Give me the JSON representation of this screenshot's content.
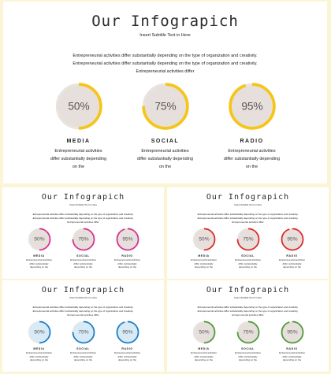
{
  "slides": [
    {
      "title": "Our Infograpich",
      "subtitle": "Insert Subtitle Text in Here",
      "description": "Entrepreneurial activities differ substantially depending on the type of organization and creativity. Entrepreneurial activities differ substantially depending on the type of organization and creativity. Entrepreneurial activities differ",
      "accent": "#f5c518",
      "items": [
        {
          "label": "MEDIA",
          "value": "50%",
          "fraction": 0.5,
          "desc": "Entrepreneurial activities differ substantially depending on the"
        },
        {
          "label": "SOCIAL",
          "value": "75%",
          "fraction": 0.75,
          "desc": "Entrepreneurial activities differ substantially depending on the"
        },
        {
          "label": "RADIO",
          "value": "95%",
          "fraction": 0.95,
          "desc": "Entrepreneurial activities differ substantially depending on the"
        }
      ]
    },
    {
      "title": "Our Infograpich",
      "subtitle": "Insert Subtitle Text in Here",
      "description": "Entrepreneurial activities differ substantially depending on the type of organization and creativity. Entrepreneurial activities differ substantially depending on the type of organization and creativity. Entrepreneurial activities differ",
      "accent": "#d6338f",
      "items": [
        {
          "label": "MEDIA",
          "value": "50%",
          "fraction": 0.5,
          "desc": "Entrepreneurial activities differ substantially depending on the"
        },
        {
          "label": "SOCIAL",
          "value": "75%",
          "fraction": 0.75,
          "desc": "Entrepreneurial activities differ substantially depending on the"
        },
        {
          "label": "RADIO",
          "value": "95%",
          "fraction": 0.95,
          "desc": "Entrepreneurial activities differ substantially depending on the"
        }
      ]
    },
    {
      "title": "Our Infograpich",
      "subtitle": "Insert Subtitle Text in Here",
      "description": "Entrepreneurial activities differ substantially depending on the type of organization and creativity. Entrepreneurial activities differ substantially depending on the type of organization and creativity. Entrepreneurial activities differ",
      "accent": "#dd2b2b",
      "items": [
        {
          "label": "MEDIA",
          "value": "50%",
          "fraction": 0.5,
          "desc": "Entrepreneurial activities differ substantially depending on the"
        },
        {
          "label": "SOCIAL",
          "value": "75%",
          "fraction": 0.75,
          "desc": "Entrepreneurial activities differ substantially depending on the"
        },
        {
          "label": "RADIO",
          "value": "95%",
          "fraction": 0.95,
          "desc": "Entrepreneurial activities differ substantially depending on the"
        }
      ]
    },
    {
      "title": "Our Infograpich",
      "subtitle": "Insert Subtitle Text in Here",
      "description": "Entrepreneurial activities differ substantially depending on the type of organization and creativity. Entrepreneurial activities differ substantially depending on the type of organization and creativity. Entrepreneurial activities differ",
      "accent": "#1f7fc4",
      "ring_fill": "#d8eaf6",
      "items": [
        {
          "label": "MEDIA",
          "value": "50%",
          "fraction": 0.5,
          "desc": "Entrepreneurial activities differ substantially depending on the"
        },
        {
          "label": "SOCIAL",
          "value": "75%",
          "fraction": 0.75,
          "desc": "Entrepreneurial activities differ substantially depending on the"
        },
        {
          "label": "RADIO",
          "value": "95%",
          "fraction": 0.95,
          "desc": "Entrepreneurial activities differ substantially depending on the"
        }
      ]
    },
    {
      "title": "Our Infograpich",
      "subtitle": "Insert Subtitle Text in Here",
      "description": "Entrepreneurial activities differ substantially depending on the type of organization and creativity. Entrepreneurial activities differ substantially depending on the type of organization and creativity. Entrepreneurial activities differ",
      "accent": "#4e9a3a",
      "items": [
        {
          "label": "MEDIA",
          "value": "50%",
          "fraction": 0.5,
          "desc": "Entrepreneurial activities differ substantially depending on the"
        },
        {
          "label": "SOCIAL",
          "value": "75%",
          "fraction": 0.75,
          "desc": "Entrepreneurial activities differ substantially depending on the"
        },
        {
          "label": "RADIO",
          "value": "95%",
          "fraction": 0.95,
          "desc": "Entrepreneurial activities differ substantially depending on the"
        }
      ]
    }
  ],
  "theme": {
    "background": "#fbf5d6",
    "ring_fill": "#e6dfdb",
    "ring_track": "#e8e3e0",
    "text": "#222222"
  }
}
